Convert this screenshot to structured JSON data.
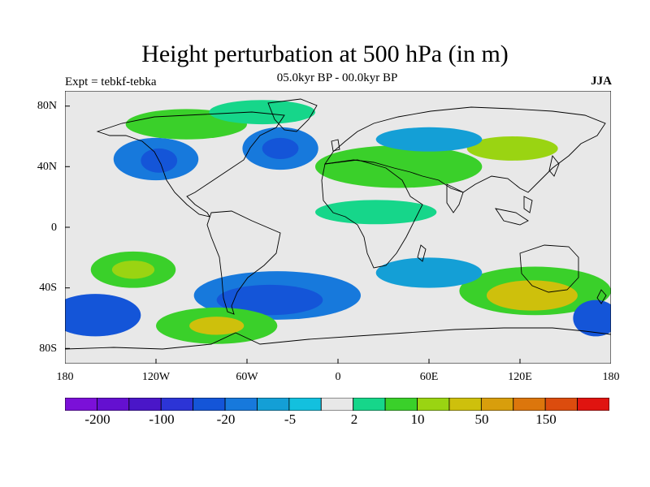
{
  "title": "Height perturbation at 500 hPa (in m)",
  "subtitle": "05.0kyr BP - 00.0kyr BP",
  "left_label": "Expt = tebkf-tebka",
  "right_label": "JJA",
  "lat_ticks": [
    "80N",
    "40N",
    "0",
    "40S",
    "80S"
  ],
  "lon_ticks": [
    "180",
    "120W",
    "60W",
    "0",
    "60E",
    "120E",
    "180"
  ],
  "colorbar": {
    "colors": [
      "#7b10d8",
      "#6410d0",
      "#4a16c8",
      "#2c34d6",
      "#1455d8",
      "#1779dc",
      "#149fd6",
      "#13c0de",
      "#e8e8e8",
      "#16d68a",
      "#3ad02a",
      "#9ad412",
      "#cec00c",
      "#d89e0c",
      "#dc760c",
      "#dc4c0e",
      "#e01410"
    ],
    "labels": [
      "-200",
      "-100",
      "-20",
      "-5",
      "2",
      "10",
      "50",
      "150"
    ]
  },
  "chart_data": {
    "type": "filled-contour-map",
    "variable": "Height perturbation at 500 hPa (in m)",
    "season": "JJA",
    "xlim": [
      -180,
      180
    ],
    "ylim": [
      -90,
      90
    ],
    "projection": "cylindrical equidistant",
    "colorbar_labels": [
      "-200",
      "-100",
      "-20",
      "-5",
      "2",
      "10",
      "50",
      "150"
    ],
    "features": [
      {
        "name": "blue-northeast-pacific",
        "lon": -120,
        "lat": 45,
        "rx": 28,
        "ry": 14,
        "color": "#1779dc"
      },
      {
        "name": "core-northeast-pacific",
        "lon": -118,
        "lat": 44,
        "rx": 12,
        "ry": 8,
        "color": "#1455d8"
      },
      {
        "name": "blue-north-atlantic",
        "lon": -38,
        "lat": 52,
        "rx": 25,
        "ry": 14,
        "color": "#1779dc"
      },
      {
        "name": "core-north-atlantic",
        "lon": -38,
        "lat": 52,
        "rx": 12,
        "ry": 7,
        "color": "#1455d8"
      },
      {
        "name": "green-arctic-canada",
        "lon": -100,
        "lat": 68,
        "rx": 40,
        "ry": 10,
        "color": "#3ad02a"
      },
      {
        "name": "green-greenland",
        "lon": -50,
        "lat": 76,
        "rx": 35,
        "ry": 8,
        "color": "#16d68a"
      },
      {
        "name": "green-eurasia",
        "lon": 40,
        "lat": 40,
        "rx": 55,
        "ry": 14,
        "color": "#3ad02a"
      },
      {
        "name": "yellow-siberia",
        "lon": 115,
        "lat": 52,
        "rx": 30,
        "ry": 8,
        "color": "#9ad412"
      },
      {
        "name": "blue-central-asia",
        "lon": 60,
        "lat": 58,
        "rx": 35,
        "ry": 8,
        "color": "#149fd6"
      },
      {
        "name": "green-tropical-africa",
        "lon": 25,
        "lat": 10,
        "rx": 40,
        "ry": 8,
        "color": "#16d68a"
      },
      {
        "name": "green-south-pacific",
        "lon": -135,
        "lat": -28,
        "rx": 28,
        "ry": 12,
        "color": "#3ad02a"
      },
      {
        "name": "yellow-south-pacific",
        "lon": -135,
        "lat": -28,
        "rx": 14,
        "ry": 6,
        "color": "#9ad412"
      },
      {
        "name": "blue-south-atlantic",
        "lon": -40,
        "lat": -45,
        "rx": 55,
        "ry": 16,
        "color": "#1779dc"
      },
      {
        "name": "core-south-atlantic",
        "lon": -45,
        "lat": -48,
        "rx": 35,
        "ry": 10,
        "color": "#1455d8"
      },
      {
        "name": "blue-southwest-pacific",
        "lon": -160,
        "lat": -58,
        "rx": 30,
        "ry": 14,
        "color": "#1455d8"
      },
      {
        "name": "green-southeast-pacific",
        "lon": -80,
        "lat": -65,
        "rx": 40,
        "ry": 12,
        "color": "#3ad02a"
      },
      {
        "name": "yellow-southeast-pacific",
        "lon": -80,
        "lat": -65,
        "rx": 18,
        "ry": 6,
        "color": "#cec00c"
      },
      {
        "name": "green-indian-ocean",
        "lon": 130,
        "lat": -42,
        "rx": 50,
        "ry": 16,
        "color": "#3ad02a"
      },
      {
        "name": "yellow-indian-ocean",
        "lon": 128,
        "lat": -45,
        "rx": 30,
        "ry": 10,
        "color": "#cec00c"
      },
      {
        "name": "blue-southern-indian",
        "lon": 60,
        "lat": -30,
        "rx": 35,
        "ry": 10,
        "color": "#149fd6"
      },
      {
        "name": "blue-far-southeast",
        "lon": 170,
        "lat": -60,
        "rx": 15,
        "ry": 12,
        "color": "#1455d8"
      }
    ]
  }
}
